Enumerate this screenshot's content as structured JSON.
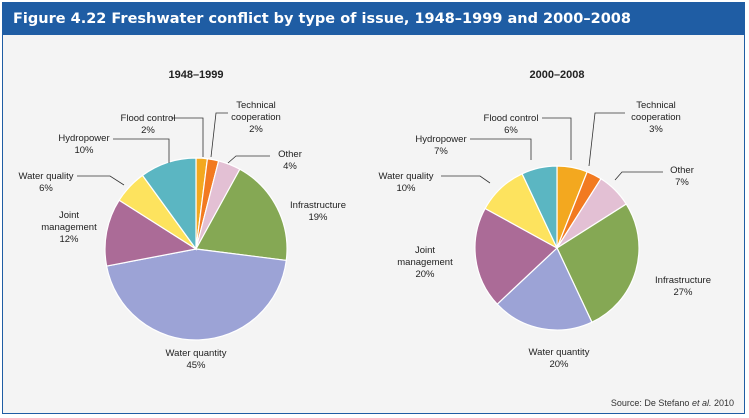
{
  "figure_title": "Figure 4.22 Freshwater conflict by type of issue, 1948–1999 and 2000–2008",
  "source": {
    "prefix": "Source: De Stefano ",
    "italic": "et al.",
    "suffix": " 2010"
  },
  "colors": {
    "title_bar": "#1f5da4",
    "background": "#f4f4f4",
    "Flood control": "#f3a81f",
    "Technical cooperation": "#f27a21",
    "Other": "#e3c0d4",
    "Infrastructure": "#85a854",
    "Water quantity": "#9ca3d6",
    "Joint management": "#ab6b97",
    "Water quality": "#fde35e",
    "Hydropower": "#5bb6c2"
  },
  "chart_data": [
    {
      "type": "pie",
      "title": "1948–1999",
      "slices": [
        {
          "label": "Flood control",
          "lines": [
            "Flood control",
            "2%"
          ],
          "value": 2
        },
        {
          "label": "Technical cooperation",
          "lines": [
            "Technical",
            "cooperation",
            "2%"
          ],
          "value": 2
        },
        {
          "label": "Other",
          "lines": [
            "Other",
            "4%"
          ],
          "value": 4
        },
        {
          "label": "Infrastructure",
          "lines": [
            "Infrastructure",
            "19%"
          ],
          "value": 19
        },
        {
          "label": "Water quantity",
          "lines": [
            "Water quantity",
            "45%"
          ],
          "value": 45
        },
        {
          "label": "Joint management",
          "lines": [
            "Joint",
            "management",
            "12%"
          ],
          "value": 12
        },
        {
          "label": "Water quality",
          "lines": [
            "Water quality",
            "6%"
          ],
          "value": 6
        },
        {
          "label": "Hydropower",
          "lines": [
            "Hydropower",
            "10%"
          ],
          "value": 10
        }
      ]
    },
    {
      "type": "pie",
      "title": "2000–2008",
      "slices": [
        {
          "label": "Flood control",
          "lines": [
            "Flood control",
            "6%"
          ],
          "value": 6
        },
        {
          "label": "Technical cooperation",
          "lines": [
            "Technical",
            "cooperation",
            "3%"
          ],
          "value": 3
        },
        {
          "label": "Other",
          "lines": [
            "Other",
            "7%"
          ],
          "value": 7
        },
        {
          "label": "Infrastructure",
          "lines": [
            "Infrastructure",
            "27%"
          ],
          "value": 27
        },
        {
          "label": "Water quantity",
          "lines": [
            "Water quantity",
            "20%"
          ],
          "value": 20
        },
        {
          "label": "Joint management",
          "lines": [
            "Joint",
            "management",
            "20%"
          ],
          "value": 20
        },
        {
          "label": "Water quality",
          "lines": [
            "Water quality",
            "10%"
          ],
          "value": 10
        },
        {
          "label": "Hydropower",
          "lines": [
            "Hydropower",
            "7%"
          ],
          "value": 7
        }
      ]
    }
  ]
}
